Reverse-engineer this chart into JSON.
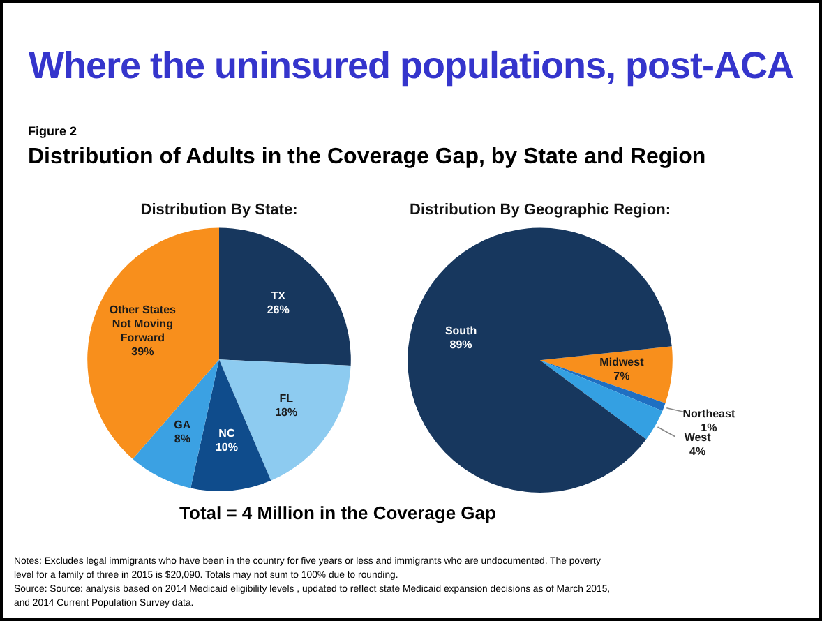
{
  "chart_data": [
    {
      "type": "pie",
      "title": "Distribution By State:",
      "categories": [
        "TX",
        "FL",
        "NC",
        "GA",
        "Other States Not Moving Forward"
      ],
      "values": [
        26,
        18,
        10,
        8,
        39
      ],
      "colors": [
        "#17375e",
        "#8dcbf0",
        "#0f4c8c",
        "#3ba1e3",
        "#f88f1c"
      ],
      "value_labels": [
        "26%",
        "18%",
        "10%",
        "8%",
        "39%"
      ],
      "annotations": [
        "Where the uninsured populations, post-ACA",
        "Figure 2",
        "Distribution of Adults in the Coverage Gap, by State and Region"
      ]
    },
    {
      "type": "pie",
      "title": "Distribution By Geographic Region:",
      "categories": [
        "Midwest",
        "Northeast",
        "West",
        "South"
      ],
      "values": [
        7,
        1,
        4,
        89
      ],
      "colors": [
        "#f88f1c",
        "#1f6fc2",
        "#34a0e2",
        "#17375e"
      ],
      "value_labels": [
        "7%",
        "1%",
        "4%",
        "89%"
      ],
      "annotations": [
        "Total = 4 Million in the Coverage Gap",
        "Notes: Excludes legal immigrants who have been in the country for five years or less and immigrants who are undocumented. The poverty level for a family of three in 2015 is $20,090. Totals may not sum to 100% due to rounding.",
        "Source: Source: analysis based on 2014 Medicaid eligibility levels , updated to reflect state Medicaid expansion decisions as of March 2015, and 2014 Current Population Survey data."
      ]
    }
  ]
}
